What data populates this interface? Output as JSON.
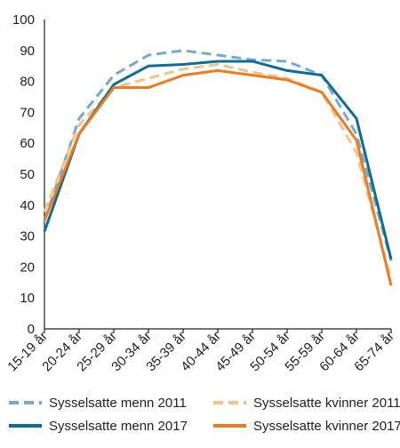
{
  "chart_data": {
    "type": "line",
    "categories": [
      "15-19 år",
      "20-24 år",
      "25-29 år",
      "30-34 år",
      "35-39 år",
      "40-44 år",
      "45-49 år",
      "50-54 år",
      "55-59 år",
      "60-64 år",
      "65-74 år"
    ],
    "ylim": [
      0,
      100
    ],
    "yticks": [
      0,
      10,
      20,
      30,
      40,
      50,
      60,
      70,
      80,
      90,
      100
    ],
    "grid": false,
    "legend_position": "bottom",
    "series": [
      {
        "name": "Sysselsatte menn 2011",
        "values": [
          35,
          68,
          82,
          88.5,
          90,
          88.5,
          87,
          86.5,
          82,
          63,
          22
        ],
        "color": "#76a9d0",
        "dash": true,
        "width": 3
      },
      {
        "name": "Sysselsatte kvinner 2011",
        "values": [
          38,
          66,
          78,
          81,
          84,
          85.5,
          83,
          81,
          76.5,
          57,
          16
        ],
        "color": "#f5c28c",
        "dash": true,
        "width": 3
      },
      {
        "name": "Sysselsatte menn 2017",
        "values": [
          31.5,
          63,
          79,
          85,
          85.5,
          86.5,
          86.5,
          83.5,
          82,
          68,
          22.5
        ],
        "color": "#0b6e94",
        "dash": false,
        "width": 3
      },
      {
        "name": "Sysselsatte kvinner 2017",
        "values": [
          35,
          63,
          78,
          78,
          82,
          83.5,
          82,
          80.5,
          76.5,
          61,
          14
        ],
        "color": "#f07b1f",
        "dash": false,
        "width": 3
      }
    ]
  }
}
